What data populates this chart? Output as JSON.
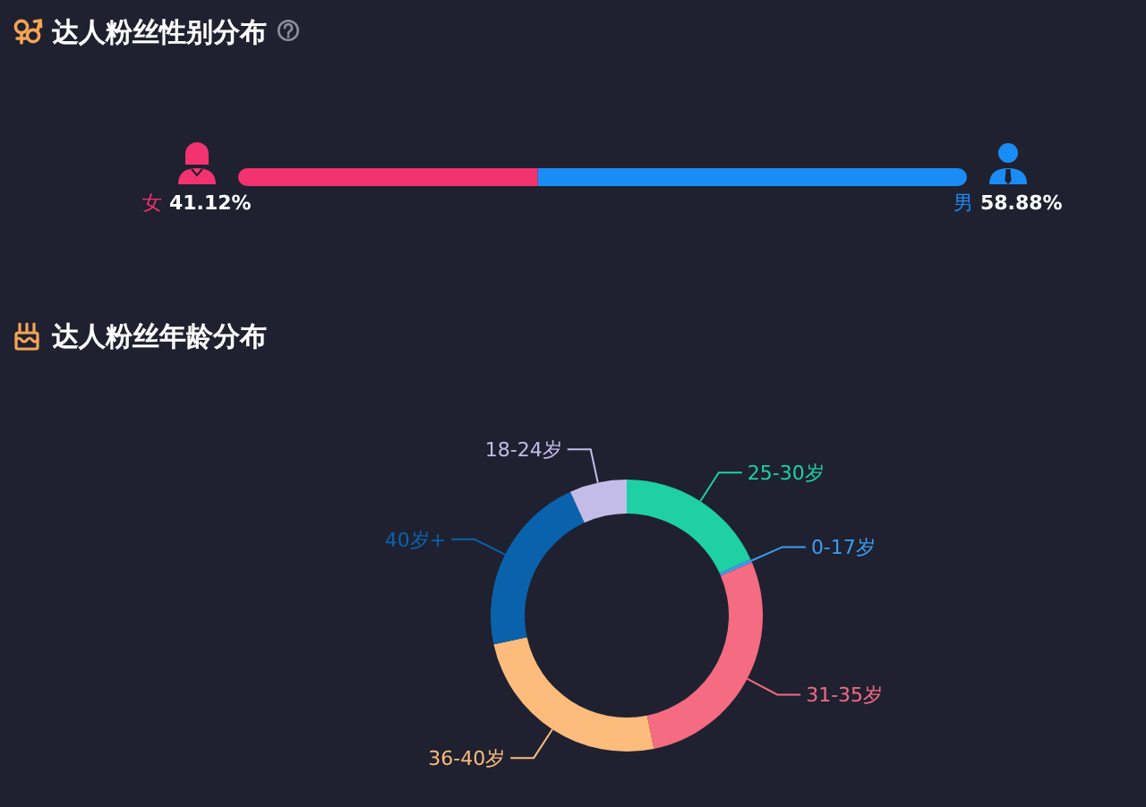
{
  "chart_data": [
    {
      "type": "bar",
      "title": "达人粉丝性别分布",
      "orientation": "horizontal",
      "stacked": true,
      "categories": [
        null
      ],
      "series": [
        {
          "name": "女",
          "color": "#f3336f",
          "values": [
            41.12
          ],
          "value_labels": [
            "41.12%"
          ]
        },
        {
          "name": "男",
          "color": "#1a8cf5",
          "values": [
            58.88
          ],
          "value_labels": [
            "58.88%"
          ]
        }
      ]
    },
    {
      "type": "donut",
      "title": "达人粉丝年龄分布",
      "categories": [
        "25-30岁",
        "0-17岁",
        "31-35岁",
        "36-40岁",
        "40岁+",
        "18-24岁"
      ],
      "values": [
        18.2,
        0.4,
        28.2,
        24.8,
        21.6,
        6.8
      ],
      "colors": [
        "#1ed0a4",
        "#3c9cf0",
        "#f46b82",
        "#fdbb7c",
        "#0b62ac",
        "#c4bce8"
      ]
    }
  ]
}
